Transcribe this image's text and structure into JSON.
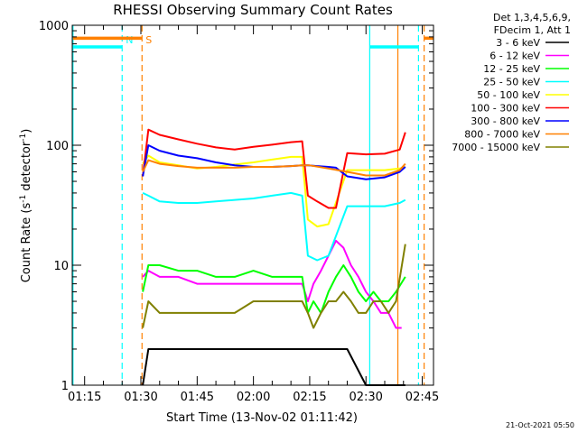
{
  "chart_data": {
    "type": "line",
    "title": "RHESSI Observing Summary Count Rates",
    "xlabel": "Start Time (13-Nov-02 01:11:42)",
    "ylabel_main": "Count Rate (s",
    "ylabel_sup1": "-1",
    "ylabel_mid": " detector",
    "ylabel_sup2": "-1",
    "ylabel_end": ")",
    "yscale": "log",
    "ylim": [
      1,
      1000
    ],
    "xlim_minutes": [
      71.7,
      168.0
    ],
    "x_ticks": [
      {
        "label": "01:15",
        "minute": 75
      },
      {
        "label": "01:30",
        "minute": 90
      },
      {
        "label": "01:45",
        "minute": 105
      },
      {
        "label": "02:00",
        "minute": 120
      },
      {
        "label": "02:15",
        "minute": 135
      },
      {
        "label": "02:30",
        "minute": 150
      },
      {
        "label": "02:45",
        "minute": 165
      }
    ],
    "y_ticks": [
      {
        "label": "1",
        "value": 1
      },
      {
        "label": "10",
        "value": 10
      },
      {
        "label": "100",
        "value": 100
      },
      {
        "label": "1000",
        "value": 1000
      }
    ],
    "legend_header": [
      "Det 1,3,4,5,6,9,",
      "FDecim 1, Att 1"
    ],
    "legend_position": "right",
    "series": [
      {
        "name": "3 - 6 keV",
        "color": "#000000",
        "x": [
          90.5,
          92,
          95,
          100,
          105,
          110,
          115,
          120,
          125,
          130,
          133,
          134.5,
          137,
          140,
          145,
          150,
          155,
          159,
          160.5
        ],
        "y": [
          1,
          2,
          2,
          2,
          2,
          2,
          2,
          2,
          2,
          2,
          2,
          2,
          2,
          2,
          2,
          1,
          1,
          1,
          1
        ]
      },
      {
        "name": "6 - 12 keV",
        "color": "#ff00ff",
        "x": [
          90.5,
          92,
          95,
          100,
          105,
          110,
          115,
          120,
          125,
          130,
          133,
          134.5,
          136,
          138,
          140,
          142,
          144,
          146,
          148,
          150,
          152,
          154,
          156,
          158,
          159.5
        ],
        "y": [
          8,
          9,
          8,
          8,
          7,
          7,
          7,
          7,
          7,
          7,
          7,
          5,
          7,
          9,
          12,
          16,
          14,
          10,
          8,
          6,
          5,
          4,
          4,
          3,
          3
        ]
      },
      {
        "name": "12 - 25 keV",
        "color": "#00ff00",
        "x": [
          90.5,
          92,
          95,
          100,
          105,
          110,
          115,
          120,
          125,
          130,
          133,
          134.5,
          136,
          138,
          140,
          142,
          144,
          146,
          148,
          150,
          152,
          154,
          156,
          158,
          160.5
        ],
        "y": [
          6,
          10,
          10,
          9,
          9,
          8,
          8,
          9,
          8,
          8,
          8,
          4,
          5,
          4,
          6,
          8,
          10,
          8,
          6,
          5,
          6,
          5,
          5,
          6,
          8
        ]
      },
      {
        "name": "25 - 50 keV",
        "color": "#00ffff",
        "x": [
          90.5,
          92,
          95,
          100,
          105,
          110,
          115,
          120,
          125,
          130,
          133,
          134.5,
          137,
          140,
          145,
          150,
          155,
          159,
          160.5
        ],
        "y": [
          40,
          38,
          34,
          33,
          33,
          34,
          35,
          36,
          38,
          40,
          38,
          12,
          11,
          12,
          31,
          31,
          31,
          33,
          35
        ]
      },
      {
        "name": "50 - 100 keV",
        "color": "#ffff00",
        "x": [
          90.5,
          92,
          95,
          100,
          105,
          110,
          115,
          120,
          125,
          130,
          133,
          134.5,
          137,
          140,
          145,
          150,
          155,
          159,
          160.5
        ],
        "y": [
          70,
          82,
          72,
          68,
          64,
          66,
          69,
          72,
          76,
          80,
          80,
          24,
          21,
          22,
          62,
          62,
          62,
          64,
          66
        ]
      },
      {
        "name": "100 - 300 keV",
        "color": "#ff0000",
        "x": [
          90.5,
          92,
          95,
          100,
          105,
          110,
          115,
          120,
          125,
          130,
          133,
          134.5,
          137,
          140,
          142,
          145,
          150,
          155,
          159,
          160.5
        ],
        "y": [
          55,
          135,
          122,
          112,
          103,
          96,
          92,
          97,
          101,
          106,
          108,
          38,
          34,
          30,
          30,
          86,
          84,
          85,
          92,
          128
        ]
      },
      {
        "name": "300 - 800 keV",
        "color": "#0000ff",
        "x": [
          90.5,
          92,
          95,
          100,
          105,
          110,
          115,
          120,
          125,
          130,
          133,
          134.5,
          137,
          140,
          142,
          145,
          150,
          155,
          159,
          160.5
        ],
        "y": [
          55,
          100,
          90,
          82,
          78,
          72,
          68,
          66,
          66,
          67,
          68,
          68,
          67,
          66,
          65,
          55,
          52,
          54,
          60,
          66
        ]
      },
      {
        "name": "800 - 7000 keV",
        "color": "#ff8000",
        "x": [
          90.5,
          92,
          95,
          100,
          105,
          110,
          115,
          120,
          125,
          130,
          133,
          135,
          140,
          145,
          150,
          155,
          159,
          160.5
        ],
        "y": [
          60,
          75,
          70,
          67,
          65,
          65,
          65,
          66,
          66,
          67,
          68,
          68,
          64,
          60,
          56,
          56,
          62,
          70
        ]
      },
      {
        "name": "7000 - 15000 keV",
        "color": "#808000",
        "x": [
          90.5,
          92,
          95,
          100,
          105,
          110,
          115,
          120,
          125,
          130,
          133,
          134.5,
          136,
          138,
          140,
          142,
          144,
          146,
          148,
          150,
          152,
          154,
          156,
          158,
          160.5
        ],
        "y": [
          3,
          5,
          4,
          4,
          4,
          4,
          4,
          5,
          5,
          5,
          5,
          4,
          3,
          4,
          5,
          5,
          6,
          5,
          4,
          4,
          5,
          5,
          4,
          5,
          15
        ]
      }
    ],
    "markers": [
      {
        "minute": 71.9,
        "color": "#00ffff",
        "style": "solid",
        "label": ""
      },
      {
        "minute": 85.0,
        "color": "#00ffff",
        "style": "dashed",
        "label": "N"
      },
      {
        "minute": 90.3,
        "color": "#ff8000",
        "style": "dashed",
        "label": "S"
      },
      {
        "minute": 151.0,
        "color": "#00ffff",
        "style": "solid",
        "label": ""
      },
      {
        "minute": 158.5,
        "color": "#ff8000",
        "style": "solid",
        "label": ""
      },
      {
        "minute": 164.0,
        "color": "#00ffff",
        "style": "dashed",
        "label": ""
      },
      {
        "minute": 165.5,
        "color": "#ff8000",
        "style": "dashed",
        "label": ""
      }
    ],
    "top_bars": [
      {
        "color": "#ff8000",
        "from": 71.9,
        "to": 90.3,
        "value": 780
      },
      {
        "color": "#00ffff",
        "from": 71.9,
        "to": 85.0,
        "value": 660
      },
      {
        "color": "#ff8000",
        "from": 165.5,
        "to": 168.0,
        "value": 780
      },
      {
        "color": "#00ffff",
        "from": 151.0,
        "to": 164.0,
        "value": 660
      }
    ]
  },
  "timestamp": "21-Oct-2021 05:50"
}
